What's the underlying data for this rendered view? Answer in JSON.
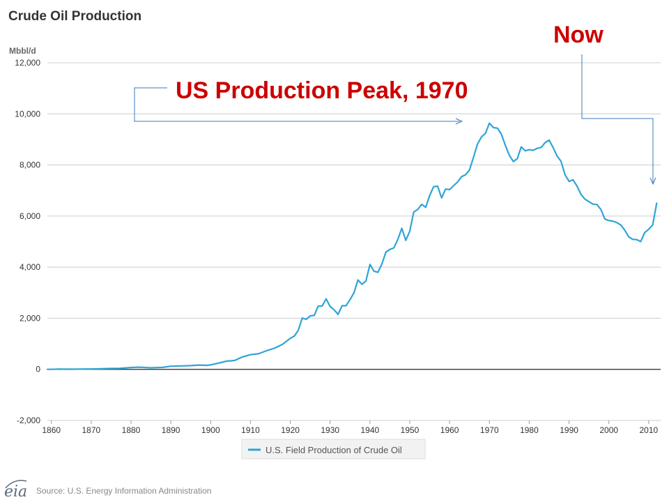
{
  "chart_data": {
    "type": "line",
    "title": "Crude Oil Production",
    "unit_label": "Mbbl/d",
    "ylim": [
      -2000,
      12000
    ],
    "yticks": [
      -2000,
      0,
      2000,
      4000,
      6000,
      8000,
      10000,
      12000
    ],
    "ytick_labels": [
      "-2,000",
      "0",
      "2,000",
      "4,000",
      "6,000",
      "8,000",
      "10,000",
      "12,000"
    ],
    "xlim": [
      1859,
      2013
    ],
    "xticks": [
      1860,
      1870,
      1880,
      1890,
      1900,
      1910,
      1920,
      1930,
      1940,
      1950,
      1960,
      1970,
      1980,
      1990,
      2000,
      2010
    ],
    "xtick_labels": [
      "1860",
      "1870",
      "1880",
      "1890",
      "1900",
      "1910",
      "1920",
      "1930",
      "1940",
      "1950",
      "1960",
      "1970",
      "1980",
      "1990",
      "2000",
      "2010"
    ],
    "grid": true,
    "legend_position": "bottom",
    "series": [
      {
        "name": "U.S. Field Production of Crude Oil",
        "color": "#2fa4d4",
        "points": [
          [
            1859,
            0
          ],
          [
            1860,
            1
          ],
          [
            1862,
            8
          ],
          [
            1865,
            7
          ],
          [
            1870,
            15
          ],
          [
            1875,
            34
          ],
          [
            1877,
            37
          ],
          [
            1880,
            72
          ],
          [
            1882,
            84
          ],
          [
            1885,
            60
          ],
          [
            1888,
            76
          ],
          [
            1890,
            124
          ],
          [
            1893,
            133
          ],
          [
            1895,
            145
          ],
          [
            1897,
            166
          ],
          [
            1899,
            156
          ],
          [
            1900,
            174
          ],
          [
            1902,
            244
          ],
          [
            1904,
            321
          ],
          [
            1906,
            346
          ],
          [
            1908,
            487
          ],
          [
            1910,
            574
          ],
          [
            1912,
            610
          ],
          [
            1914,
            727
          ],
          [
            1916,
            824
          ],
          [
            1918,
            976
          ],
          [
            1920,
            1214
          ],
          [
            1921,
            1300
          ],
          [
            1922,
            1526
          ],
          [
            1923,
            2007
          ],
          [
            1924,
            1956
          ],
          [
            1925,
            2092
          ],
          [
            1926,
            2111
          ],
          [
            1927,
            2469
          ],
          [
            1928,
            2477
          ],
          [
            1929,
            2760
          ],
          [
            1930,
            2460
          ],
          [
            1931,
            2332
          ],
          [
            1932,
            2151
          ],
          [
            1933,
            2488
          ],
          [
            1934,
            2488
          ],
          [
            1935,
            2730
          ],
          [
            1936,
            3000
          ],
          [
            1937,
            3500
          ],
          [
            1938,
            3327
          ],
          [
            1939,
            3462
          ],
          [
            1940,
            4107
          ],
          [
            1941,
            3842
          ],
          [
            1942,
            3796
          ],
          [
            1943,
            4125
          ],
          [
            1944,
            4584
          ],
          [
            1945,
            4695
          ],
          [
            1946,
            4751
          ],
          [
            1947,
            5088
          ],
          [
            1948,
            5520
          ],
          [
            1949,
            5046
          ],
          [
            1950,
            5407
          ],
          [
            1951,
            6158
          ],
          [
            1952,
            6256
          ],
          [
            1953,
            6458
          ],
          [
            1954,
            6342
          ],
          [
            1955,
            6807
          ],
          [
            1956,
            7151
          ],
          [
            1957,
            7170
          ],
          [
            1958,
            6710
          ],
          [
            1959,
            7054
          ],
          [
            1960,
            7035
          ],
          [
            1961,
            7183
          ],
          [
            1962,
            7332
          ],
          [
            1963,
            7542
          ],
          [
            1964,
            7614
          ],
          [
            1965,
            7804
          ],
          [
            1966,
            8295
          ],
          [
            1967,
            8810
          ],
          [
            1968,
            9096
          ],
          [
            1969,
            9238
          ],
          [
            1970,
            9637
          ],
          [
            1971,
            9463
          ],
          [
            1972,
            9441
          ],
          [
            1973,
            9208
          ],
          [
            1974,
            8774
          ],
          [
            1975,
            8375
          ],
          [
            1976,
            8132
          ],
          [
            1977,
            8245
          ],
          [
            1978,
            8707
          ],
          [
            1979,
            8552
          ],
          [
            1980,
            8597
          ],
          [
            1981,
            8572
          ],
          [
            1982,
            8649
          ],
          [
            1983,
            8688
          ],
          [
            1984,
            8879
          ],
          [
            1985,
            8971
          ],
          [
            1986,
            8680
          ],
          [
            1987,
            8349
          ],
          [
            1988,
            8140
          ],
          [
            1989,
            7613
          ],
          [
            1990,
            7355
          ],
          [
            1991,
            7417
          ],
          [
            1992,
            7171
          ],
          [
            1993,
            6847
          ],
          [
            1994,
            6662
          ],
          [
            1995,
            6560
          ],
          [
            1996,
            6465
          ],
          [
            1997,
            6452
          ],
          [
            1998,
            6252
          ],
          [
            1999,
            5881
          ],
          [
            2000,
            5822
          ],
          [
            2001,
            5801
          ],
          [
            2002,
            5744
          ],
          [
            2003,
            5649
          ],
          [
            2004,
            5441
          ],
          [
            2005,
            5184
          ],
          [
            2006,
            5088
          ],
          [
            2007,
            5077
          ],
          [
            2008,
            5000
          ],
          [
            2009,
            5353
          ],
          [
            2010,
            5482
          ],
          [
            2011,
            5652
          ],
          [
            2012,
            6500
          ]
        ]
      }
    ],
    "annotations": [
      {
        "text": "US Production Peak, 1970",
        "color": "#cc0000"
      },
      {
        "text": "Now",
        "color": "#cc0000"
      }
    ]
  },
  "footer": {
    "source": "Source: U.S. Energy Information Administration",
    "logo_text": "eia"
  }
}
